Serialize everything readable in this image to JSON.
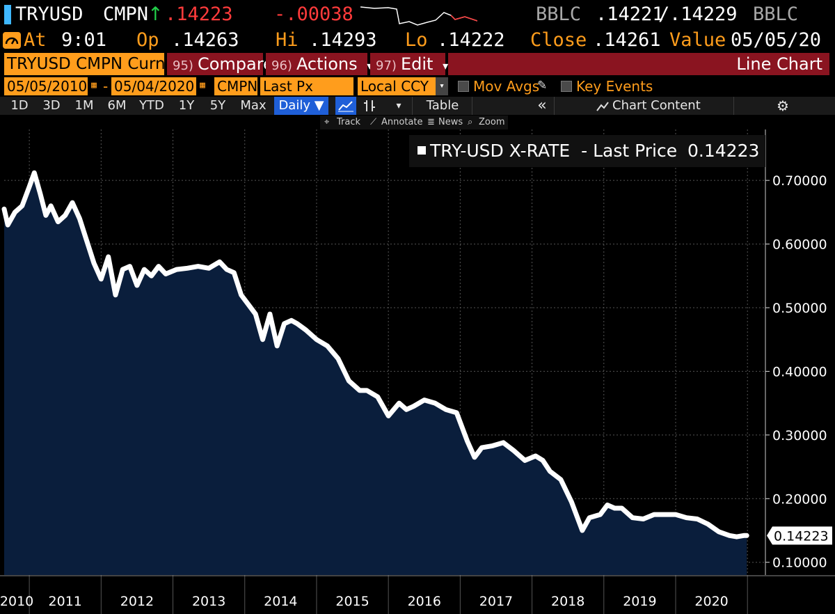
{
  "header": {
    "ticker": "TRYUSD",
    "source": "CMPN",
    "direction_icon": "arrow-up-icon",
    "last": ".14223",
    "change": "-.00038",
    "bid_source": "BBLC",
    "bid": ".14221",
    "separator": "/",
    "ask": ".14229",
    "ask_source": "BBLC"
  },
  "stats": {
    "at_label": "At",
    "time": "9:01",
    "open_label": "Op",
    "open": ".14263",
    "high_label": "Hi",
    "high": ".14293",
    "low_label": "Lo",
    "low": ".14222",
    "close_label": "Close",
    "close": ".14261",
    "value_label": "Value",
    "value_date": "05/05/20"
  },
  "toolbar": {
    "security": "TRYUSD CMPN Curnc",
    "compare_num": "95)",
    "compare": "Compare",
    "actions_num": "96)",
    "actions": "Actions",
    "edit_num": "97)",
    "edit": "Edit",
    "dropdown_glyph": "▾",
    "chart_type": "Line Chart"
  },
  "settings": {
    "start_date": "05/05/2010",
    "dash": "-",
    "end_date": "05/04/2020",
    "pricing_source": "CMPN",
    "field": "Last Px",
    "currency": "Local CCY",
    "mov_avgs": "Mov Avgs",
    "key_events": "Key Events"
  },
  "periods": {
    "items": [
      "1D",
      "3D",
      "1M",
      "6M",
      "YTD",
      "1Y",
      "5Y",
      "Max"
    ],
    "frequency": "Daily ▼",
    "table": "Table",
    "collapse": "«",
    "chart_content": "Chart Content"
  },
  "tools": {
    "track": "Track",
    "annotate": "Annotate",
    "news": "News",
    "zoom": "Zoom"
  },
  "colors": {
    "orange": "#ff9d1c",
    "red_toolbar": "#8a1420",
    "area_fill": "#0a1e3c",
    "line": "#ffffff",
    "selected": "#1f5fd8"
  },
  "chart_data": {
    "type": "area",
    "title": "",
    "legend": "TRY-USD X-RATE  - Last Price",
    "legend_value": "0.14223",
    "last_value_label": "0.14223",
    "xlabel": "",
    "ylabel": "",
    "ylim": [
      0.08,
      0.78
    ],
    "y_ticks": [
      "0.10000",
      "0.20000",
      "0.30000",
      "0.40000",
      "0.50000",
      "0.60000",
      "0.70000"
    ],
    "x_ticks": [
      "2010",
      "2011",
      "2012",
      "2013",
      "2014",
      "2015",
      "2016",
      "2017",
      "2018",
      "2019",
      "2020"
    ],
    "x_range": [
      2010.0,
      2020.6
    ],
    "legend_position": "top-right",
    "grid": true,
    "series": [
      {
        "x": [
          2010.0,
          2010.05,
          2010.15,
          2010.25,
          2010.35,
          2010.42,
          2010.5,
          2010.58,
          2010.65,
          2010.75,
          2010.85,
          2010.95,
          2011.05,
          2011.15,
          2011.25,
          2011.35,
          2011.45,
          2011.55,
          2011.65,
          2011.75,
          2011.85,
          2011.95,
          2012.05,
          2012.15,
          2012.25,
          2012.4,
          2012.55,
          2012.7,
          2012.85,
          2013.0,
          2013.1,
          2013.2,
          2013.3,
          2013.4,
          2013.5,
          2013.6,
          2013.7,
          2013.8,
          2013.9,
          2014.0,
          2014.08,
          2014.2,
          2014.35,
          2014.5,
          2014.65,
          2014.8,
          2014.95,
          2015.05,
          2015.2,
          2015.35,
          2015.5,
          2015.6,
          2015.7,
          2015.85,
          2016.0,
          2016.15,
          2016.3,
          2016.45,
          2016.55,
          2016.65,
          2016.8,
          2016.95,
          2017.1,
          2017.25,
          2017.4,
          2017.5,
          2017.6,
          2017.75,
          2017.9,
          2018.05,
          2018.15,
          2018.3,
          2018.4,
          2018.5,
          2018.6,
          2018.75,
          2018.9,
          2019.05,
          2019.2,
          2019.35,
          2019.5,
          2019.65,
          2019.8,
          2019.95,
          2020.1,
          2020.2,
          2020.3,
          2020.34
        ],
        "values": [
          0.655,
          0.63,
          0.65,
          0.66,
          0.69,
          0.712,
          0.68,
          0.645,
          0.66,
          0.635,
          0.645,
          0.665,
          0.64,
          0.605,
          0.57,
          0.545,
          0.58,
          0.52,
          0.56,
          0.565,
          0.535,
          0.56,
          0.55,
          0.565,
          0.553,
          0.56,
          0.562,
          0.565,
          0.562,
          0.572,
          0.56,
          0.555,
          0.52,
          0.505,
          0.49,
          0.45,
          0.49,
          0.44,
          0.475,
          0.48,
          0.475,
          0.465,
          0.45,
          0.44,
          0.42,
          0.385,
          0.37,
          0.37,
          0.36,
          0.33,
          0.35,
          0.34,
          0.345,
          0.355,
          0.35,
          0.34,
          0.335,
          0.29,
          0.265,
          0.28,
          0.283,
          0.288,
          0.275,
          0.26,
          0.267,
          0.26,
          0.243,
          0.23,
          0.195,
          0.15,
          0.17,
          0.175,
          0.19,
          0.185,
          0.185,
          0.17,
          0.168,
          0.175,
          0.175,
          0.175,
          0.17,
          0.168,
          0.16,
          0.148,
          0.142,
          0.14,
          0.142,
          0.142
        ]
      }
    ]
  }
}
